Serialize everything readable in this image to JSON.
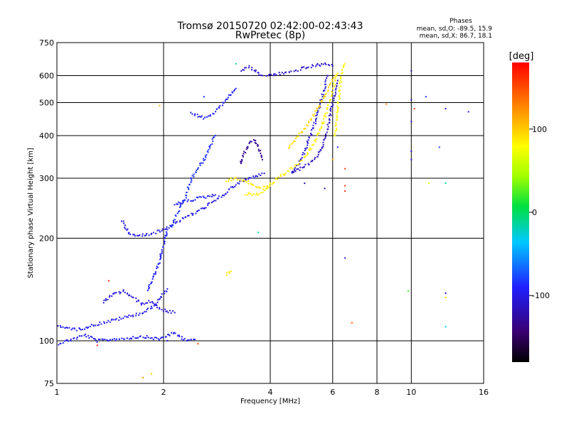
{
  "chart_data": {
    "type": "scatter",
    "title": "Tromsø 20150720 02:42:00-02:43:43",
    "subtitle": "RwPretec (8p)",
    "xlabel": "Frequency [MHz]",
    "ylabel": "Stationary phase Virtual Height [km]",
    "x_scale": "log",
    "y_scale": "log",
    "xlim": [
      1,
      16
    ],
    "ylim": [
      75,
      750
    ],
    "x_ticks": [
      1,
      2,
      4,
      6,
      8,
      10,
      16
    ],
    "x_tick_labels": [
      "1",
      "2",
      "4",
      "6",
      "8",
      "10",
      "16"
    ],
    "x_gridlines": [
      2,
      4,
      6,
      8,
      10
    ],
    "y_ticks": [
      75,
      100,
      200,
      300,
      400,
      500,
      600,
      750
    ],
    "y_tick_labels": [
      "75",
      "100",
      "200",
      "300",
      "400",
      "500",
      "600",
      "750"
    ],
    "y_gridlines": [
      100,
      200,
      300,
      400,
      500,
      600
    ],
    "grid": true,
    "legend_stats": {
      "title": "Phases",
      "line_o": "mean, sd,O: -89.5, 15.9",
      "line_x": "mean, sd,X: 86.7, 18.1"
    },
    "colorbar": {
      "label": "[deg]",
      "range": [
        -180,
        180
      ],
      "ticks": [
        100,
        0,
        -100
      ],
      "tick_labels": [
        "100",
        "0",
        "-100"
      ],
      "placement": "right"
    },
    "traces": [
      {
        "x": [
          1.0,
          1.1,
          1.2,
          1.3,
          1.45,
          1.6,
          1.75,
          1.85,
          1.95,
          2.05,
          2.15,
          2.3,
          2.45
        ],
        "y": [
          98,
          101,
          104,
          100,
          101,
          102,
          103,
          102,
          101,
          104,
          105,
          101,
          101
        ],
        "phase": -95
      },
      {
        "x": [
          1.0,
          1.15,
          1.3,
          1.45,
          1.6,
          1.75,
          1.85,
          1.95,
          2.05
        ],
        "y": [
          110,
          108,
          112,
          115,
          118,
          121,
          125,
          133,
          142
        ],
        "phase": -95
      },
      {
        "x": [
          1.35,
          1.45,
          1.55,
          1.65,
          1.75,
          1.85,
          1.95,
          2.05,
          2.15
        ],
        "y": [
          130,
          137,
          140,
          133,
          128,
          131,
          124,
          122,
          121
        ],
        "phase": -105
      },
      {
        "x": [
          1.8,
          1.85,
          1.9,
          1.95,
          1.97,
          2.0,
          2.02,
          2.05
        ],
        "y": [
          140,
          150,
          160,
          170,
          180,
          190,
          200,
          212
        ],
        "phase": -90
      },
      {
        "x": [
          1.53,
          1.6,
          1.7,
          1.82,
          1.95,
          2.05,
          2.15,
          2.3,
          2.5,
          2.7,
          2.9,
          3.1,
          3.3,
          3.5,
          3.7,
          3.85
        ],
        "y": [
          225,
          205,
          203,
          206,
          210,
          215,
          222,
          230,
          240,
          252,
          265,
          280,
          292,
          300,
          306,
          310
        ],
        "phase": -100
      },
      {
        "x": [
          2.1,
          2.2,
          2.3,
          2.35,
          2.4,
          2.5,
          2.6,
          2.7,
          2.8
        ],
        "y": [
          215,
          240,
          260,
          280,
          300,
          320,
          340,
          370,
          400
        ],
        "phase": -85
      },
      {
        "x": [
          2.15,
          2.25,
          2.35,
          2.5,
          2.65,
          2.8
        ],
        "y": [
          250,
          255,
          258,
          262,
          265,
          268
        ],
        "phase": -92
      },
      {
        "x": [
          2.4,
          2.5,
          2.6,
          2.7,
          2.8,
          2.9,
          3.0,
          3.1,
          3.2
        ],
        "y": [
          470,
          455,
          452,
          458,
          470,
          490,
          510,
          530,
          550
        ],
        "phase": -92
      },
      {
        "x": [
          3.3,
          3.4,
          3.5,
          3.6,
          3.7,
          3.8
        ],
        "y": [
          620,
          630,
          635,
          625,
          610,
          600
        ],
        "phase": -110
      },
      {
        "x": [
          3.3,
          3.4,
          3.5,
          3.6,
          3.7,
          3.8
        ],
        "y": [
          330,
          360,
          380,
          390,
          370,
          340
        ],
        "phase": -130
      },
      {
        "x": [
          3.9,
          4.1,
          4.3,
          4.5,
          4.7,
          4.9,
          5.1,
          5.3,
          5.5,
          5.7,
          5.9,
          6.0
        ],
        "y": [
          600,
          605,
          610,
          612,
          620,
          628,
          635,
          640,
          645,
          648,
          648,
          640
        ],
        "phase": -110
      },
      {
        "x": [
          4.6,
          4.8,
          5.0,
          5.2,
          5.4,
          5.6,
          5.8
        ],
        "y": [
          310,
          330,
          360,
          400,
          450,
          520,
          600
        ],
        "phase": -105
      },
      {
        "x": [
          4.6,
          4.8,
          5.0,
          5.2,
          5.4,
          5.6,
          5.8,
          6.0,
          6.2
        ],
        "y": [
          310,
          318,
          325,
          333,
          345,
          370,
          420,
          500,
          580
        ],
        "phase": -115
      },
      {
        "x": [
          3.4,
          3.6,
          3.8,
          4.0,
          4.2,
          4.4,
          4.6,
          4.8,
          5.0,
          5.2,
          5.4,
          5.6,
          5.8,
          6.0,
          6.2
        ],
        "y": [
          270,
          268,
          272,
          285,
          300,
          310,
          320,
          330,
          345,
          365,
          395,
          430,
          480,
          540,
          610
        ],
        "phase": 85
      },
      {
        "x": [
          4.5,
          4.7,
          4.9,
          5.1,
          5.3,
          5.5,
          5.7,
          5.9,
          6.1
        ],
        "y": [
          370,
          390,
          410,
          430,
          460,
          490,
          520,
          560,
          600
        ],
        "phase": 95
      },
      {
        "x": [
          3.0,
          3.1
        ],
        "y": [
          157,
          160
        ],
        "phase": 90
      },
      {
        "x": [
          3.0,
          3.2,
          3.4,
          3.6,
          3.8,
          4.0
        ],
        "y": [
          295,
          300,
          295,
          285,
          280,
          290
        ],
        "phase": 88
      },
      {
        "x": [
          6.1,
          6.15,
          6.2,
          6.25,
          6.3,
          6.35,
          6.4,
          6.45,
          6.5
        ],
        "y": [
          400,
          440,
          480,
          520,
          560,
          600,
          620,
          640,
          650
        ],
        "phase": 80
      }
    ],
    "scatter_points": [
      {
        "x": 10.0,
        "y": 620,
        "phase": -120
      },
      {
        "x": 10.0,
        "y": 510,
        "phase": -110
      },
      {
        "x": 10.0,
        "y": 440,
        "phase": -100
      },
      {
        "x": 10.0,
        "y": 360,
        "phase": -105
      },
      {
        "x": 10.0,
        "y": 340,
        "phase": -95
      },
      {
        "x": 11.0,
        "y": 520,
        "phase": -85
      },
      {
        "x": 12.5,
        "y": 480,
        "phase": -100
      },
      {
        "x": 14.5,
        "y": 470,
        "phase": -95
      },
      {
        "x": 12.0,
        "y": 370,
        "phase": -80
      },
      {
        "x": 12.5,
        "y": 290,
        "phase": -10
      },
      {
        "x": 11.2,
        "y": 290,
        "phase": 60
      },
      {
        "x": 12.5,
        "y": 138,
        "phase": -105
      },
      {
        "x": 12.5,
        "y": 134,
        "phase": 100
      },
      {
        "x": 12.5,
        "y": 110,
        "phase": -30
      },
      {
        "x": 9.8,
        "y": 140,
        "phase": 20
      },
      {
        "x": 8.5,
        "y": 495,
        "phase": 130
      },
      {
        "x": 10.2,
        "y": 480,
        "phase": 150
      },
      {
        "x": 6.5,
        "y": 320,
        "phase": 155
      },
      {
        "x": 6.5,
        "y": 285,
        "phase": 160
      },
      {
        "x": 6.5,
        "y": 275,
        "phase": 165
      },
      {
        "x": 6.5,
        "y": 175,
        "phase": -100
      },
      {
        "x": 6.8,
        "y": 113,
        "phase": 150
      },
      {
        "x": 6.0,
        "y": 340,
        "phase": 120
      },
      {
        "x": 3.7,
        "y": 208,
        "phase": -10
      },
      {
        "x": 2.5,
        "y": 98,
        "phase": 155
      },
      {
        "x": 2.05,
        "y": 100,
        "phase": -100
      },
      {
        "x": 1.95,
        "y": 490,
        "phase": 110
      },
      {
        "x": 2.6,
        "y": 520,
        "phase": -90
      },
      {
        "x": 3.2,
        "y": 650,
        "phase": -10
      },
      {
        "x": 1.3,
        "y": 97,
        "phase": 170
      },
      {
        "x": 1.4,
        "y": 150,
        "phase": 170
      },
      {
        "x": 1.85,
        "y": 80,
        "phase": 100
      },
      {
        "x": 1.75,
        "y": 78,
        "phase": 120
      },
      {
        "x": 5.7,
        "y": 280,
        "phase": -120
      },
      {
        "x": 5.0,
        "y": 290,
        "phase": -130
      },
      {
        "x": 6.2,
        "y": 370,
        "phase": -100
      }
    ]
  }
}
